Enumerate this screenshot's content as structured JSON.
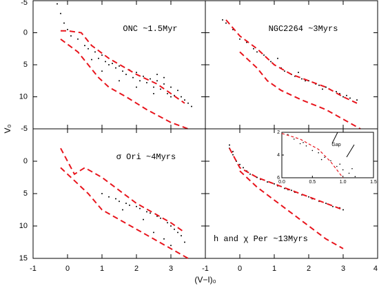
{
  "figure": {
    "xlabel": "(V−I)₀",
    "ylabel": "V₀"
  },
  "chart_data": [
    {
      "type": "scatter",
      "title": "ONC ~1.5Myr",
      "xlim": [
        -1,
        4
      ],
      "ylim": [
        -5,
        15
      ],
      "y_inverted": true,
      "xticks": [
        -1,
        0,
        1,
        2,
        3,
        4
      ],
      "yticks": [
        -5,
        0,
        5,
        10
      ],
      "show_xticklabels": false,
      "show_yticklabels": true,
      "point_color": "#000000",
      "line_color": "#e8141c",
      "points": {
        "x": [
          -0.3,
          -0.2,
          -0.1,
          0,
          0.1,
          0.3,
          0.5,
          0.6,
          0.8,
          0.9,
          1.0,
          1.1,
          1.2,
          1.3,
          1.4,
          1.5,
          1.6,
          1.7,
          1.8,
          1.9,
          2.0,
          2.1,
          2.2,
          2.3,
          2.4,
          2.5,
          2.6,
          2.7,
          2.8,
          2.9,
          3.0,
          3.1,
          3.2,
          3.3,
          3.4,
          3.5,
          1.0,
          1.5,
          2.0,
          2.5,
          3.0,
          0.7,
          2.6,
          2.8,
          3.6
        ],
        "y": [
          -4.5,
          -3,
          -1.5,
          -0.5,
          0.5,
          1,
          2,
          2.5,
          3,
          4,
          3.5,
          4.5,
          5,
          4.8,
          5.5,
          5.2,
          6,
          6.5,
          5.8,
          7,
          6.2,
          7.5,
          6.8,
          7.8,
          7.2,
          8.5,
          7.5,
          8.8,
          8,
          9.5,
          8.5,
          9.8,
          9,
          10,
          10.5,
          11,
          6,
          7.5,
          8.5,
          9.5,
          10,
          4.2,
          6.5,
          7,
          11.5
        ]
      },
      "isochrones": [
        {
          "x": [
            -0.2,
            0,
            0.4,
            0.7,
            1.2,
            2,
            2.6,
            3,
            3.4
          ],
          "y": [
            -0.3,
            -0.3,
            0,
            2,
            4,
            6.5,
            8,
            9.5,
            11
          ]
        },
        {
          "x": [
            -0.2,
            0.3,
            0.6,
            0.9,
            1.2,
            1.7,
            2.3,
            3,
            3.5
          ],
          "y": [
            1,
            3,
            5,
            7,
            8.5,
            10,
            12,
            14,
            15
          ]
        }
      ]
    },
    {
      "type": "scatter",
      "title": "NGC2264 ~3Myrs",
      "xlim": [
        -1,
        4
      ],
      "ylim": [
        -5,
        15
      ],
      "y_inverted": true,
      "xticks": [
        -1,
        0,
        1,
        2,
        3,
        4
      ],
      "yticks": [
        -5,
        0,
        5,
        10
      ],
      "show_xticklabels": false,
      "show_yticklabels": false,
      "point_color": "#000000",
      "line_color": "#e8141c",
      "points": {
        "x": [
          -0.5,
          -0.4,
          -0.2,
          0,
          0.2,
          0.4,
          0.5,
          0.7,
          0.9,
          1.0,
          1.2,
          1.3,
          1.5,
          1.6,
          1.8,
          1.9,
          2.0,
          2.2,
          2.3,
          2.5,
          2.6,
          2.8,
          2.9,
          3.0,
          3.1,
          3.2,
          3.4,
          1.1,
          1.7,
          2.4
        ],
        "y": [
          -2,
          -1.5,
          -0.5,
          1,
          1.5,
          2.5,
          3,
          3.5,
          4.5,
          5,
          5.5,
          6,
          6.5,
          6.8,
          7.2,
          7.5,
          7.5,
          8,
          8.2,
          8.5,
          8.8,
          9.2,
          9.5,
          10,
          9.8,
          10.2,
          10.5,
          4,
          6.2,
          8.8
        ]
      },
      "isochrones": [
        {
          "x": [
            -0.4,
            0,
            0.5,
            1,
            1.5,
            2,
            2.5,
            3,
            3.4
          ],
          "y": [
            -2,
            0.5,
            2.5,
            5,
            6.5,
            7.5,
            8.5,
            10,
            11
          ]
        },
        {
          "x": [
            0,
            0.5,
            0.8,
            1.2,
            1.8,
            2.5,
            3,
            3.5
          ],
          "y": [
            3,
            5.5,
            7.5,
            9,
            10.5,
            12,
            13.5,
            15
          ]
        }
      ]
    },
    {
      "type": "scatter",
      "title": "σ Ori ~4Myrs",
      "xlim": [
        -1,
        4
      ],
      "ylim": [
        -5,
        15
      ],
      "y_inverted": true,
      "xticks": [
        -1,
        0,
        1,
        2,
        3
      ],
      "yticks": [
        -5,
        0,
        5,
        10,
        15
      ],
      "show_xticklabels": true,
      "show_yticklabels": true,
      "point_color": "#000000",
      "line_color": "#e8141c",
      "points": {
        "x": [
          1.0,
          1.2,
          1.4,
          1.5,
          1.7,
          1.8,
          2.0,
          2.1,
          2.3,
          2.4,
          2.6,
          2.7,
          2.9,
          3.0,
          3.1,
          3.2,
          3.3,
          3.4,
          2.5,
          2.8,
          3.0,
          1.6,
          2.2
        ],
        "y": [
          5,
          5.5,
          5.8,
          6.2,
          6.5,
          6.8,
          7,
          7.3,
          7.8,
          8,
          8.5,
          8.8,
          9.5,
          10,
          10.5,
          11,
          11.5,
          12.5,
          11,
          12,
          13,
          7.5,
          9
        ]
      },
      "isochrones": [
        {
          "x": [
            -0.2,
            0.2,
            0.5,
            1,
            1.5,
            2,
            2.5,
            3,
            3.4
          ],
          "y": [
            -2,
            2,
            1,
            2.5,
            4.5,
            6.5,
            8,
            9.5,
            11
          ]
        },
        {
          "x": [
            -0.2,
            0.2,
            0.6,
            1,
            1.5,
            2,
            2.5,
            3,
            3.5
          ],
          "y": [
            1,
            3,
            5,
            7.5,
            9,
            10.5,
            12,
            13.5,
            15
          ]
        }
      ]
    },
    {
      "type": "scatter",
      "title": "h and χ Per ~13Myrs",
      "xlim": [
        -1,
        4
      ],
      "ylim": [
        -5,
        15
      ],
      "y_inverted": true,
      "xticks": [
        -1,
        0,
        1,
        2,
        3,
        4
      ],
      "yticks": [
        -5,
        0,
        5,
        10,
        15
      ],
      "show_xticklabels": true,
      "show_yticklabels": false,
      "point_color": "#000000",
      "line_color": "#e8141c",
      "points": {
        "x": [
          -0.3,
          -0.3,
          -0.2,
          -0.2,
          -0.1,
          0,
          0.1,
          0.2,
          0.3,
          0.5,
          0.6,
          0.8,
          1.0,
          1.1,
          1.3,
          1.5,
          1.6,
          1.8,
          2.0,
          2.1,
          2.3,
          2.5,
          2.7,
          2.9,
          3.0,
          0.4,
          0.9,
          1.4
        ],
        "y": [
          -2.5,
          -2,
          -1.5,
          -1,
          0,
          0.5,
          1,
          1.5,
          2,
          2.5,
          2.8,
          3.2,
          3.5,
          3.8,
          4.2,
          4.5,
          4.8,
          5.2,
          5.5,
          5.8,
          6.2,
          6.5,
          7,
          7.2,
          7.5,
          2.2,
          3.3,
          4.4
        ]
      },
      "isochrones": [
        {
          "x": [
            -0.3,
            0,
            0.5,
            1,
            1.5,
            2,
            2.5,
            3
          ],
          "y": [
            -2,
            1,
            2.5,
            3.5,
            4.5,
            5.5,
            6.5,
            7.5
          ]
        },
        {
          "x": [
            0,
            0.5,
            1,
            1.5,
            2,
            2.5,
            3
          ],
          "y": [
            1.5,
            4,
            6,
            8,
            10,
            12,
            13.5
          ]
        }
      ]
    },
    {
      "type": "scatter",
      "annotation": "Gap",
      "xlim": [
        0,
        1.5
      ],
      "ylim": [
        2,
        6
      ],
      "y_inverted": true,
      "xticks": [
        {
          "value": 0,
          "label": "0.0"
        },
        0.5,
        {
          "value": 1,
          "label": "1.0"
        },
        1.5
      ],
      "yticks": [
        2,
        4,
        6
      ],
      "show_xticklabels": true,
      "show_yticklabels": true,
      "point_color": "#000000",
      "line_color": "#e8141c",
      "points": {
        "x": [
          0.1,
          0.2,
          0.3,
          0.4,
          0.5,
          0.6,
          0.7,
          0.8,
          0.9,
          1.0,
          1.1,
          1.2,
          0.35,
          0.65,
          0.95,
          1.15
        ],
        "y": [
          2.2,
          2.6,
          3,
          3.2,
          3.6,
          3.8,
          4.2,
          4.5,
          5,
          5.3,
          5.6,
          5.9,
          2.9,
          4.4,
          4.8,
          5.2
        ]
      },
      "isochrones": [
        {
          "x": [
            0,
            0.3,
            0.6,
            0.8,
            1.0
          ],
          "y": [
            2.1,
            2.6,
            3.5,
            4.6,
            6
          ]
        }
      ]
    }
  ]
}
